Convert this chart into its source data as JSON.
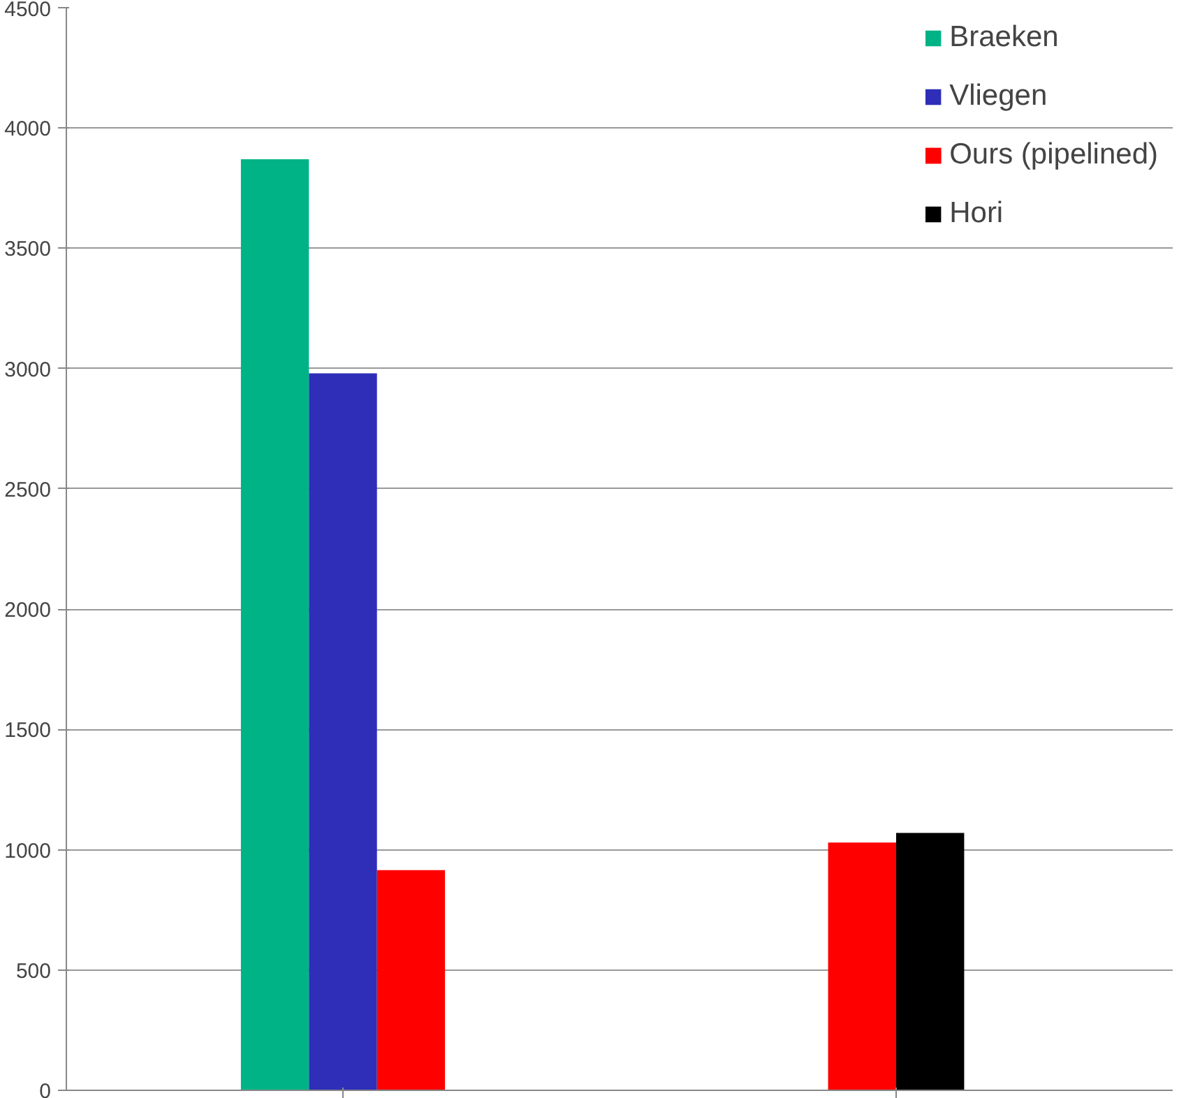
{
  "chart_data": {
    "type": "bar",
    "categories": [
      null,
      null
    ],
    "series": [
      {
        "name": "Braeken",
        "color": "#00b386",
        "values": [
          3870,
          null
        ]
      },
      {
        "name": "Vliegen",
        "color": "#2e2eb8",
        "values": [
          2980,
          null
        ]
      },
      {
        "name": "Ours (pipelined)",
        "color": "#ff0000",
        "values": [
          915,
          1030
        ]
      },
      {
        "name": "Hori",
        "color": "#000000",
        "values": [
          null,
          1070
        ]
      }
    ],
    "ylim": [
      0,
      4500
    ],
    "yticks": [
      0,
      500,
      1000,
      1500,
      2000,
      2500,
      3000,
      3500,
      4000,
      4500
    ],
    "grid": "y",
    "legend": "top right"
  }
}
